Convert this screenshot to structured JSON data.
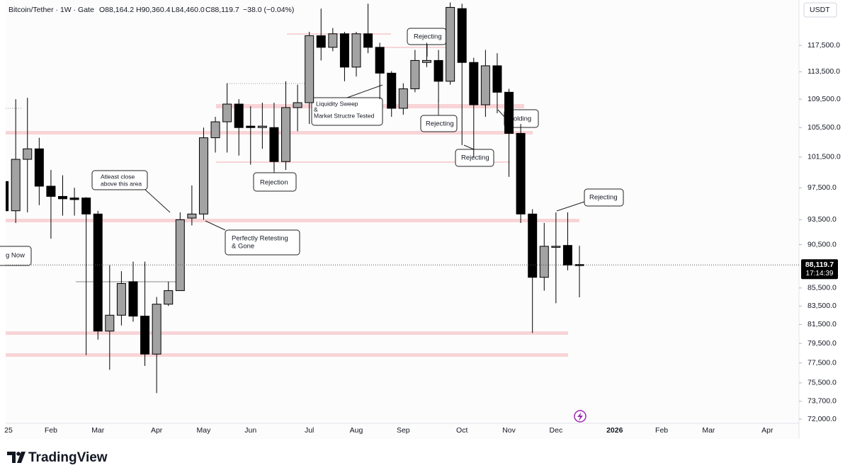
{
  "chart_data": {
    "type": "candlestick",
    "header": {
      "symbol": "Bitcoin/Tether · 1W · Gate",
      "open": "O88,164.2",
      "high": "H90,360.4",
      "low": "L84,460.0",
      "close": "C88,119.7",
      "change": "−38.0 (−0.04%)"
    },
    "currency": "USDT",
    "log_scale": true,
    "grid": false,
    "up_color": "#a3a3a3",
    "down_color": "#000000",
    "categories": [
      "25",
      null,
      null,
      null,
      "Feb",
      null,
      null,
      null,
      "Mar",
      null,
      null,
      null,
      null,
      "Apr",
      null,
      null,
      null,
      "May",
      null,
      null,
      null,
      "Jun",
      null,
      null,
      null,
      null,
      "Jul",
      null,
      null,
      null,
      "Aug",
      null,
      null,
      null,
      "Sep",
      null,
      null,
      null,
      null,
      "Oct",
      null,
      null,
      null,
      "Nov",
      null,
      null,
      null,
      "Dec",
      null,
      null,
      null,
      null,
      "2026",
      null,
      null,
      null,
      "Feb",
      null,
      null,
      null,
      "Mar",
      null,
      null,
      null,
      null,
      "Apr",
      null
    ],
    "open": [
      98300,
      94600,
      101200,
      102600,
      97700,
      96400,
      96200,
      96200,
      94200,
      80800,
      82500,
      86200,
      82400,
      78400,
      83700,
      85200,
      93700,
      94200,
      104100,
      106300,
      108800,
      105700,
      105500,
      105500,
      100900,
      108300,
      109000,
      119000,
      117200,
      119300,
      114200,
      119300,
      117200,
      113300,
      108200,
      111000,
      114900,
      115200,
      112100,
      123300,
      114900,
      108700,
      114400,
      110500,
      104700,
      94200,
      86700,
      90200,
      90400,
      88164.2,
      null,
      null,
      null,
      null,
      null,
      null,
      null,
      null,
      null,
      null,
      null,
      null,
      null,
      null,
      null,
      null,
      null
    ],
    "high": [
      99300,
      109500,
      109700,
      104100,
      99800,
      99100,
      97500,
      96300,
      94600,
      88100,
      87400,
      88500,
      88500,
      84500,
      86200,
      94400,
      97800,
      105500,
      107000,
      111800,
      109500,
      108500,
      109000,
      109000,
      112100,
      111600,
      119600,
      123300,
      120200,
      119600,
      119600,
      124100,
      117900,
      113600,
      111800,
      116800,
      117900,
      116800,
      124300,
      124100,
      115600,
      116800,
      116300,
      111000,
      106000,
      94800,
      93100,
      94400,
      94400,
      90360.4,
      null,
      null,
      null,
      null,
      null,
      null,
      null,
      null,
      null,
      null,
      null,
      null,
      null,
      null,
      null,
      null,
      null
    ],
    "low": [
      94400,
      93100,
      94400,
      95300,
      91200,
      94000,
      94000,
      78300,
      79900,
      76800,
      81400,
      81800,
      77200,
      74500,
      83500,
      85200,
      92800,
      93500,
      102100,
      102100,
      101700,
      100500,
      102600,
      99800,
      99800,
      105000,
      106000,
      115200,
      116600,
      112100,
      112800,
      116300,
      109500,
      107000,
      107300,
      110500,
      114200,
      109000,
      111600,
      103100,
      101500,
      107000,
      107500,
      98900,
      93100,
      80600,
      85200,
      83800,
      87500,
      84460.0,
      null,
      null,
      null,
      null,
      null,
      null,
      null,
      null,
      null,
      null,
      null,
      null,
      null,
      null,
      null,
      null,
      null
    ],
    "close": [
      94600,
      101200,
      102600,
      97700,
      96400,
      96100,
      96000,
      94200,
      80800,
      82500,
      86000,
      82400,
      78400,
      83700,
      85200,
      93500,
      94200,
      104100,
      106300,
      108800,
      105500,
      105500,
      105700,
      100900,
      108300,
      109000,
      119000,
      117200,
      119300,
      114200,
      119300,
      117200,
      113300,
      108200,
      111000,
      115200,
      115200,
      112100,
      123500,
      114900,
      108700,
      114400,
      110500,
      104700,
      94200,
      86700,
      90300,
      90300,
      88100,
      88119.7,
      null,
      null,
      null,
      null,
      null,
      null,
      null,
      null,
      null,
      null,
      null,
      null,
      null,
      null,
      null,
      null,
      null
    ],
    "ylim": [
      71600,
      124700
    ],
    "yticks": [
      {
        "value": 117500,
        "label": "117,500.0"
      },
      {
        "value": 113500,
        "label": "113,500.0"
      },
      {
        "value": 109500,
        "label": "109,500.0"
      },
      {
        "value": 105500,
        "label": "105,500.0"
      },
      {
        "value": 101500,
        "label": "101,500.0"
      },
      {
        "value": 97500,
        "label": "97,500.0"
      },
      {
        "value": 93500,
        "label": "93,500.0"
      },
      {
        "value": 90500,
        "label": "90,500.0"
      },
      {
        "value": 85500,
        "label": "85,500.0"
      },
      {
        "value": 83500,
        "label": "83,500.0"
      },
      {
        "value": 81500,
        "label": "81,500.0"
      },
      {
        "value": 79500,
        "label": "79,500.0"
      },
      {
        "value": 77500,
        "label": "77,500.0"
      },
      {
        "value": 75500,
        "label": "75,500.0"
      },
      {
        "value": 73700,
        "label": "73,700.0"
      },
      {
        "value": 72000,
        "label": "72,000.0"
      }
    ],
    "last_price_label": "88,119.7",
    "countdown": "17:14:39",
    "annotations": [
      {
        "lines": [
          "g Now"
        ]
      },
      {
        "lines": [
          "Atleast close",
          "above this area"
        ]
      },
      {
        "lines": [
          "Perfectly Retesting",
          "& Gone"
        ]
      },
      {
        "lines": [
          "Rejection"
        ]
      },
      {
        "lines": [
          "Liquidity Sweep",
          "&",
          "Market Structre Tested"
        ]
      },
      {
        "lines": [
          "Rejecting"
        ]
      },
      {
        "lines": [
          "Rejecting"
        ]
      },
      {
        "lines": [
          "Rejecting"
        ]
      },
      {
        "lines": [
          "Holding"
        ]
      },
      {
        "lines": [
          "Rejecting"
        ]
      }
    ],
    "branding": "TradingView"
  }
}
